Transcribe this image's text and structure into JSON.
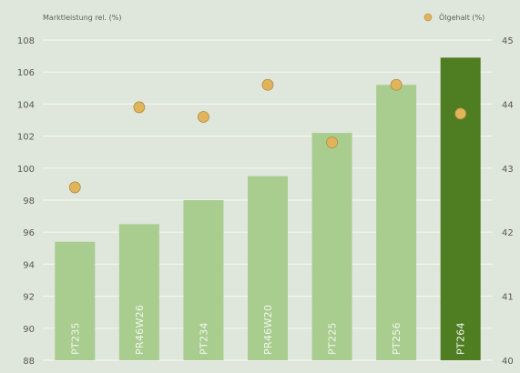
{
  "chart_data": {
    "type": "bar",
    "title": "",
    "y_left_title": "Marktleistung rel. (%)",
    "y_right_title": "Ölgehalt (%)",
    "categories": [
      "PT235",
      "PR46W26",
      "PT234",
      "PR46W20",
      "PT225",
      "PT256",
      "PT264"
    ],
    "series": [
      {
        "name": "Marktleistung rel. (%)",
        "type": "bar",
        "axis": "left",
        "values": [
          95.4,
          96.5,
          98.0,
          99.5,
          102.2,
          105.2,
          106.9
        ]
      },
      {
        "name": "Ölgehalt (%)",
        "type": "scatter",
        "axis": "right",
        "values": [
          42.7,
          43.95,
          43.8,
          44.3,
          43.4,
          44.3,
          43.85
        ]
      }
    ],
    "y_left": {
      "range": [
        88,
        108
      ],
      "ticks": [
        88,
        90,
        92,
        94,
        96,
        98,
        100,
        102,
        104,
        106,
        108
      ]
    },
    "y_right": {
      "range": [
        40,
        45
      ],
      "ticks": [
        40,
        41,
        42,
        43,
        44,
        45
      ]
    },
    "grid": true,
    "legend": "top-right",
    "highlight_category": "PT264",
    "colors": {
      "background": "#dfe6dc",
      "grid": "#f3f6f1",
      "bar": "#a9cc8f",
      "bar_highlight": "#4e7d22",
      "point": "#e0b45a",
      "point_stroke": "#b08b3e",
      "axis_text": "#555a52",
      "header_text": "#5d6358",
      "bar_text": "#f3f7ee"
    }
  }
}
